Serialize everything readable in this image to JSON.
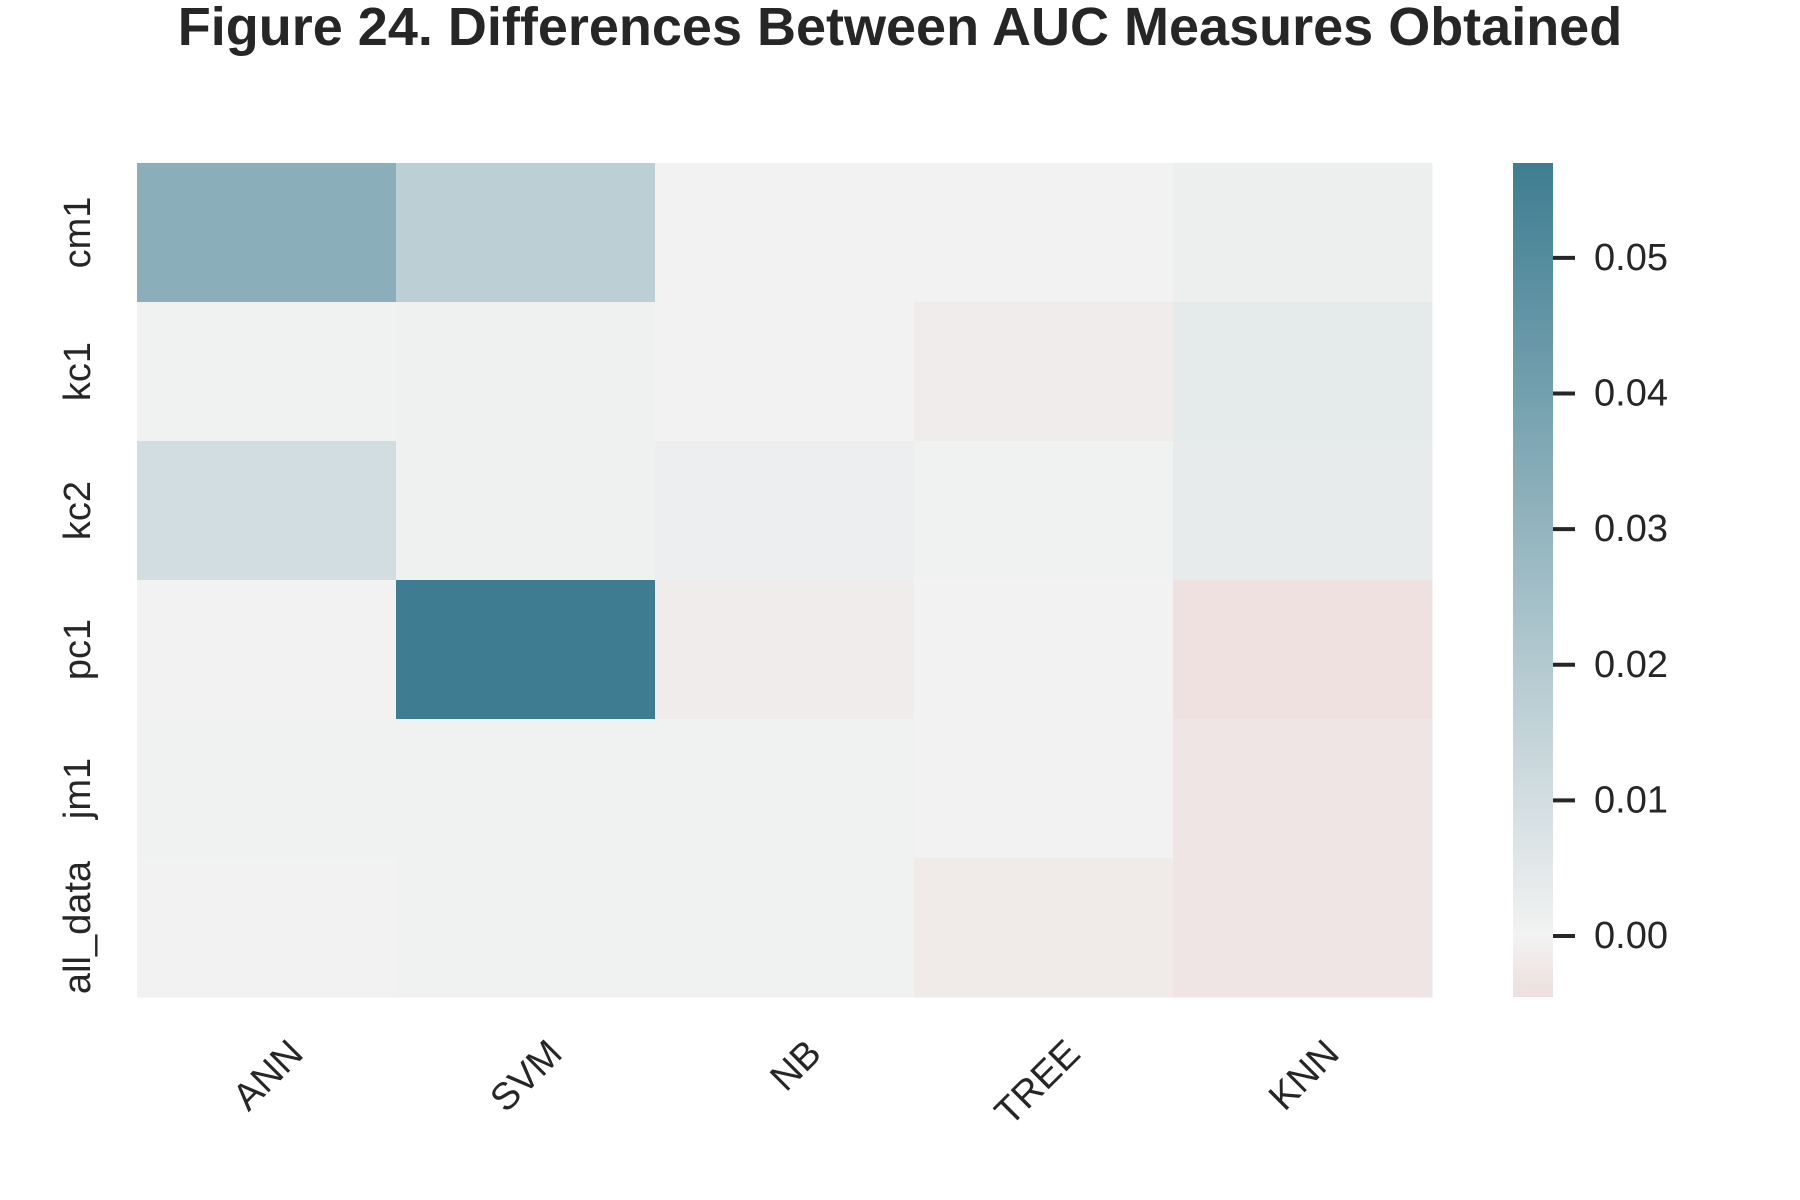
{
  "chart_data": {
    "type": "heatmap",
    "title": "Figure 24. Differences Between AUC Measures Obtained",
    "xlabel": "",
    "ylabel": "",
    "columns": [
      "ANN",
      "SVM",
      "NB",
      "TREE",
      "KNN"
    ],
    "rows": [
      "cm1",
      "kc1",
      "kc2",
      "pc1",
      "jm1",
      "all_data"
    ],
    "values": [
      [
        0.033,
        0.017,
        0.0,
        0.0,
        0.0015
      ],
      [
        0.0005,
        0.001,
        0.0,
        -0.0015,
        0.004
      ],
      [
        0.01,
        0.001,
        0.002,
        0.0005,
        0.0035
      ],
      [
        0.0,
        0.057,
        -0.0015,
        0.0,
        -0.004
      ],
      [
        0.0005,
        0.0005,
        0.0005,
        0.0,
        -0.003
      ],
      [
        0.0,
        0.0005,
        0.0005,
        -0.002,
        -0.003
      ]
    ],
    "colorbar": {
      "vmin": -0.0045,
      "vmax": 0.057,
      "ticks": [
        0.0,
        0.01,
        0.02,
        0.03,
        0.04,
        0.05
      ],
      "tick_labels": [
        "0.00",
        "0.01",
        "0.02",
        "0.03",
        "0.04",
        "0.05"
      ],
      "colormap": "diverging",
      "color_negative": "#eddfdd",
      "color_center": "#f2f2f2",
      "color_positive": "#3e7d91"
    },
    "grid": false
  }
}
